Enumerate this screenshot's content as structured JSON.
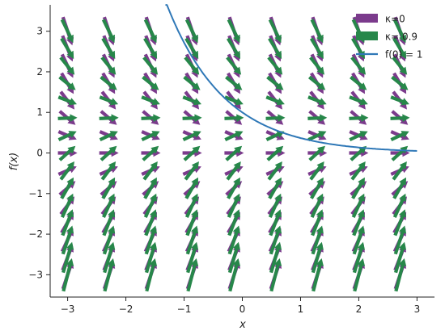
{
  "chart_data": {
    "type": "quiver",
    "xlabel": "x",
    "ylabel": "f(x)",
    "xlim": [
      -3.3,
      3.3
    ],
    "ylim": [
      -3.55,
      3.65
    ],
    "xticks": [
      -3,
      -2,
      -1,
      0,
      1,
      2,
      3
    ],
    "yticks": [
      -3,
      -2,
      -1,
      0,
      1,
      2,
      3
    ],
    "xtick_labels": [
      "−3",
      "−2",
      "−1",
      "0",
      "1",
      "2",
      "3"
    ],
    "ytick_labels": [
      "−3",
      "−2",
      "−1",
      "0",
      "1",
      "2",
      "3"
    ],
    "grid_x": [
      -3.0,
      -2.29,
      -1.57,
      -0.86,
      -0.14,
      0.57,
      1.29,
      2.0,
      2.71
    ],
    "grid_y": [
      -3.0,
      -2.57,
      -2.14,
      -1.71,
      -1.29,
      -0.86,
      -0.43,
      0.0,
      0.43,
      0.86,
      1.29,
      1.71,
      2.14,
      2.57,
      3.0
    ],
    "series": [
      {
        "name": "κ=0",
        "kind": "vector-field",
        "field": "dy/dx = -y",
        "color": "#7b3b8c"
      },
      {
        "name": "κ= 0.9",
        "kind": "vector-field",
        "field": "dy/dx = -y + 0.9",
        "color": "#27874a"
      },
      {
        "name": "f(0) = 1",
        "kind": "line",
        "function": "exp(-x)",
        "x_range": [
          -1.32,
          3.0
        ],
        "color": "#2f78b7"
      }
    ],
    "legend": {
      "position": "top-right",
      "items": [
        {
          "label": "κ=0",
          "color": "#7b3b8c",
          "marker": "patch"
        },
        {
          "label": "κ= 0.9",
          "color": "#27874a",
          "marker": "patch"
        },
        {
          "label": "f(0) = 1",
          "color": "#2f78b7",
          "marker": "line"
        }
      ]
    },
    "grid": false
  }
}
